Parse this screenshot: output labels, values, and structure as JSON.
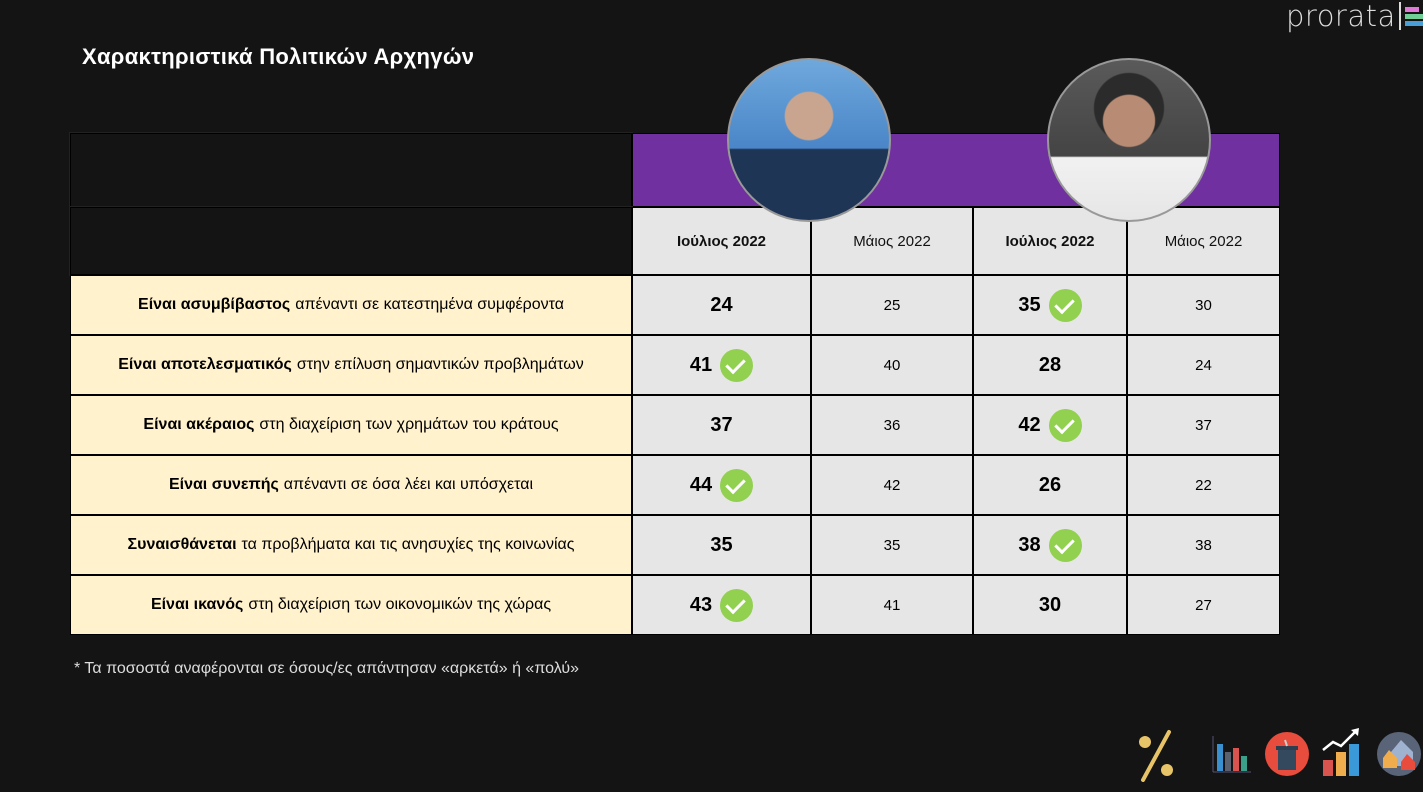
{
  "title": "Χαρακτηριστικά Πολιτικών Αρχηγών",
  "logo": {
    "text": "prorata",
    "colors": [
      "#e07ad8",
      "#6fcf97",
      "#4a9fd8"
    ]
  },
  "header": {
    "columns": [
      "Ιούλιος 2022",
      "Μάιος 2022",
      "Ιούλιος 2022",
      "Μάιος 2022"
    ],
    "purple": "#7030a0"
  },
  "rows": [
    {
      "bold": "Είναι ασυμβίβαστος",
      "rest": "απέναντι σε κατεστημένα συμφέροντα",
      "values": [
        "24",
        "25",
        "35",
        "30"
      ],
      "check": [
        false,
        true
      ]
    },
    {
      "bold": "Είναι αποτελεσματικός",
      "rest": "στην επίλυση σημαντικών προβλημάτων",
      "values": [
        "41",
        "40",
        "28",
        "24"
      ],
      "check": [
        true,
        false
      ]
    },
    {
      "bold": "Είναι ακέραιος",
      "rest": "στη διαχείριση των χρημάτων του κράτους",
      "values": [
        "37",
        "36",
        "42",
        "37"
      ],
      "check": [
        false,
        true
      ]
    },
    {
      "bold": "Είναι συνεπής",
      "rest": "απέναντι σε όσα λέει και υπόσχεται",
      "values": [
        "44",
        "42",
        "26",
        "22"
      ],
      "check": [
        true,
        false
      ]
    },
    {
      "bold": "Συναισθάνεται",
      "rest": "τα προβλήματα και τις ανησυχίες της κοινωνίας",
      "values": [
        "35",
        "35",
        "38",
        "38"
      ],
      "check": [
        false,
        true
      ]
    },
    {
      "bold": "Είναι ικανός",
      "rest": "στη διαχείριση των οικονομικών της χώρας",
      "values": [
        "43",
        "41",
        "30",
        "27"
      ],
      "check": [
        true,
        false
      ]
    }
  ],
  "footnote": "* Τα ποσοστά αναφέρονται σε όσους/ες απάντησαν «αρκετά» ή «πολύ»",
  "footer_icons": [
    "percent-icon",
    "bar-chart-icon",
    "podium-icon",
    "growth-chart-icon",
    "houses-icon"
  ]
}
